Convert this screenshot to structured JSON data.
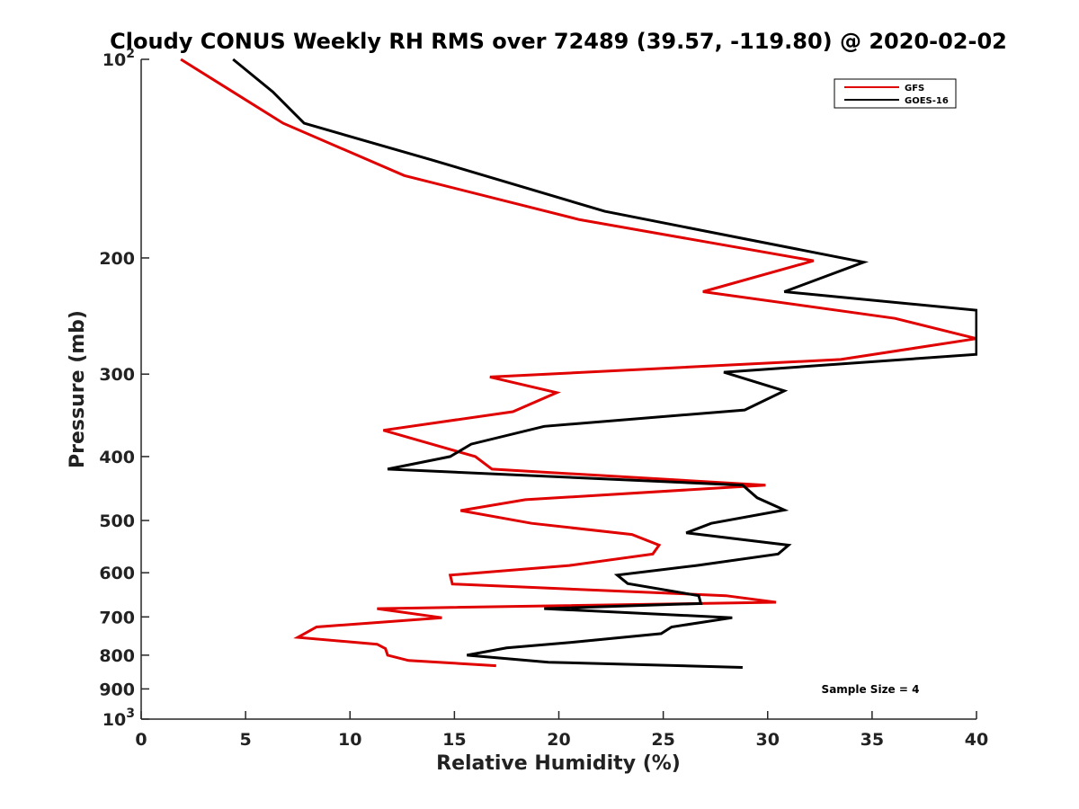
{
  "chart_data": {
    "type": "line",
    "title": "Cloudy CONUS Weekly RH RMS over 72489 (39.57, -119.80) @ 2020-02-02",
    "xlabel": "Relative Humidity (%)",
    "ylabel": "Pressure (mb)",
    "xlim": [
      0,
      40
    ],
    "ylim": [
      1000,
      100
    ],
    "y_scale": "log",
    "y_reversed": true,
    "grid": false,
    "legend_position": "top-right",
    "x_ticks": [
      "0",
      "5",
      "10",
      "15",
      "20",
      "25",
      "30",
      "35",
      "40"
    ],
    "y_ticks": [
      {
        "value": 100,
        "base": "10",
        "exp": "2"
      },
      {
        "value": 200,
        "label": "200"
      },
      {
        "value": 300,
        "label": "300"
      },
      {
        "value": 400,
        "label": "400"
      },
      {
        "value": 500,
        "label": "500"
      },
      {
        "value": 600,
        "label": "600"
      },
      {
        "value": 700,
        "label": "700"
      },
      {
        "value": 800,
        "label": "800"
      },
      {
        "value": 900,
        "label": "900"
      },
      {
        "value": 1000,
        "base": "10",
        "exp": "3"
      }
    ],
    "series": [
      {
        "name": "GFS",
        "color": "#e00000",
        "points": [
          [
            1.9,
            100
          ],
          [
            6.8,
            125
          ],
          [
            12.6,
            150
          ],
          [
            21.0,
            175
          ],
          [
            32.2,
            202
          ],
          [
            26.9,
            225
          ],
          [
            36.1,
            247
          ],
          [
            40.0,
            265
          ],
          [
            33.5,
            285
          ],
          [
            16.7,
            303
          ],
          [
            19.9,
            320
          ],
          [
            17.8,
            342
          ],
          [
            11.6,
            365
          ],
          [
            16.0,
            400
          ],
          [
            16.8,
            418
          ],
          [
            29.9,
            442
          ],
          [
            18.4,
            465
          ],
          [
            15.3,
            483
          ],
          [
            18.7,
            505
          ],
          [
            23.5,
            525
          ],
          [
            24.8,
            545
          ],
          [
            24.5,
            562
          ],
          [
            20.5,
            585
          ],
          [
            14.8,
            605
          ],
          [
            14.9,
            624
          ],
          [
            28.0,
            650
          ],
          [
            30.4,
            665
          ],
          [
            11.3,
            680
          ],
          [
            14.4,
            702
          ],
          [
            8.4,
            725
          ],
          [
            7.5,
            752
          ],
          [
            11.3,
            770
          ],
          [
            11.7,
            782
          ],
          [
            11.8,
            800
          ],
          [
            12.8,
            815
          ],
          [
            17.0,
            830
          ]
        ]
      },
      {
        "name": "GOES-16",
        "color": "#000000",
        "points": [
          [
            4.4,
            100
          ],
          [
            6.3,
            112
          ],
          [
            7.8,
            125
          ],
          [
            13.9,
            142
          ],
          [
            22.2,
            170
          ],
          [
            34.6,
            203
          ],
          [
            30.8,
            225
          ],
          [
            40.0,
            240
          ],
          [
            40.0,
            280
          ],
          [
            27.9,
            298
          ],
          [
            30.8,
            318
          ],
          [
            28.9,
            340
          ],
          [
            19.3,
            360
          ],
          [
            15.8,
            383
          ],
          [
            14.8,
            400
          ],
          [
            11.8,
            418
          ],
          [
            28.8,
            442
          ],
          [
            29.5,
            462
          ],
          [
            30.8,
            482
          ],
          [
            27.3,
            505
          ],
          [
            26.1,
            522
          ],
          [
            31.0,
            545
          ],
          [
            30.5,
            562
          ],
          [
            26.6,
            585
          ],
          [
            22.8,
            605
          ],
          [
            23.3,
            623
          ],
          [
            26.7,
            650
          ],
          [
            26.8,
            668
          ],
          [
            19.3,
            680
          ],
          [
            28.3,
            702
          ],
          [
            25.4,
            725
          ],
          [
            24.9,
            742
          ],
          [
            20.6,
            765
          ],
          [
            17.5,
            780
          ],
          [
            15.6,
            800
          ],
          [
            19.5,
            820
          ],
          [
            28.8,
            835
          ]
        ]
      }
    ],
    "annotations": [
      {
        "text": "Sample Size = 4"
      }
    ]
  }
}
